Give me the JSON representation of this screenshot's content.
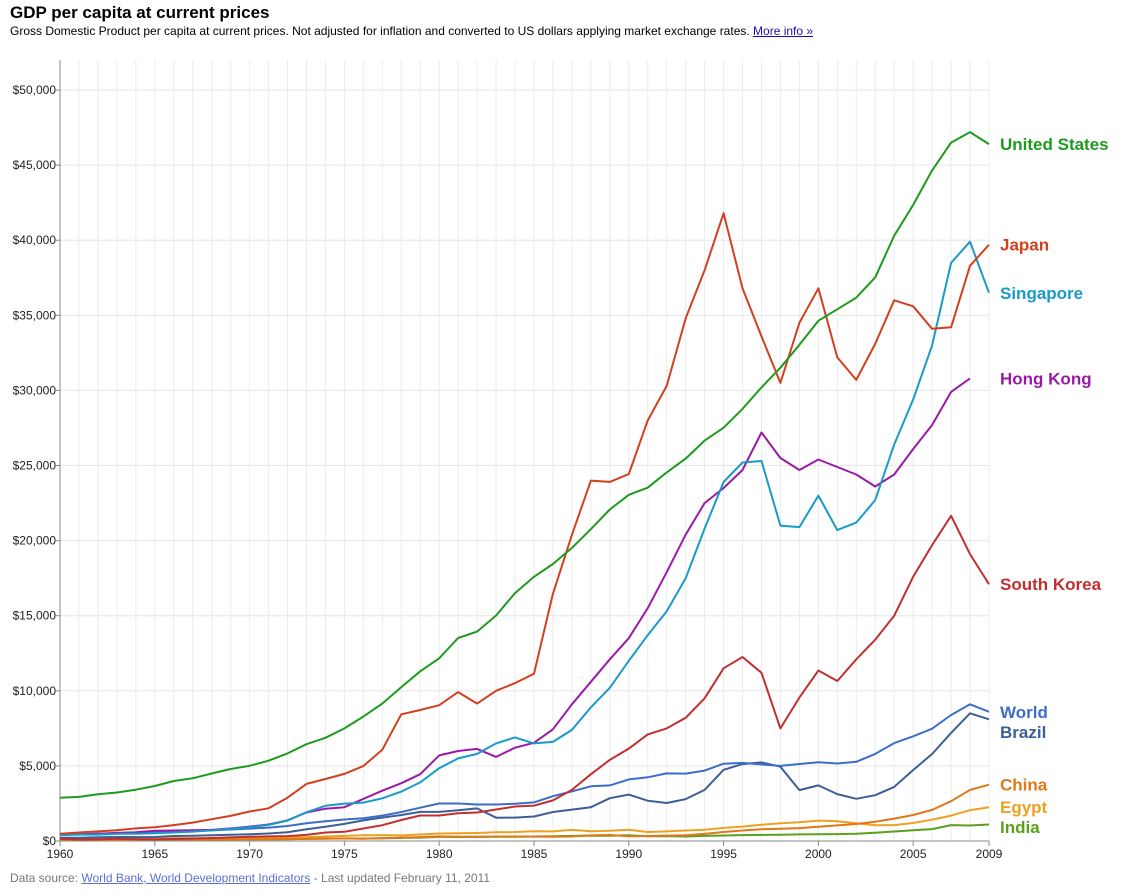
{
  "header": {
    "title": "GDP per capita at current prices",
    "subtitle": "Gross Domestic Product per capita at current prices. Not adjusted for inflation and converted to US dollars applying market exchange rates.",
    "more_info_link": "More info »"
  },
  "footer": {
    "prefix": "Data source: ",
    "source_link": "World Bank, World Development Indicators",
    "suffix": " - Last updated February 11, 2011"
  },
  "chart_data": {
    "type": "line",
    "title": "GDP per capita at current prices",
    "xlabel": "",
    "ylabel": "",
    "xlim": [
      1960,
      2009
    ],
    "ylim": [
      0,
      52000
    ],
    "grid": true,
    "legend": "right-end labels",
    "x_ticks": [
      1960,
      1965,
      1970,
      1975,
      1980,
      1985,
      1990,
      1995,
      2000,
      2005,
      2009
    ],
    "x_tick_labels": [
      "1960",
      "1965",
      "1970",
      "1975",
      "1980",
      "1985",
      "1990",
      "1995",
      "2000",
      "2005",
      "2009"
    ],
    "y_ticks": [
      0,
      5000,
      10000,
      15000,
      20000,
      25000,
      30000,
      35000,
      40000,
      45000,
      50000
    ],
    "y_tick_labels": [
      "$0",
      "$5,000",
      "$10,000",
      "$15,000",
      "$20,000",
      "$25,000",
      "$30,000",
      "$35,000",
      "$40,000",
      "$45,000",
      "$50,000"
    ],
    "series": [
      {
        "name": "United States",
        "color": "#1e9b1e",
        "start": 1960,
        "values": [
          2881,
          2934,
          3107,
          3232,
          3413,
          3665,
          3995,
          4173,
          4495,
          4797,
          5009,
          5347,
          5831,
          6443,
          6870,
          7495,
          8282,
          9148,
          10250,
          11300,
          12162,
          13514,
          13941,
          15013,
          16508,
          17588,
          18441,
          19513,
          20765,
          22075,
          23051,
          23524,
          24544,
          25459,
          26662,
          27521,
          28770,
          30202,
          31510,
          33040,
          34640,
          35400,
          36180,
          37525,
          40300,
          42350,
          44650,
          46500,
          47200,
          46400
        ],
        "label_value": 46400
      },
      {
        "name": "Japan",
        "color": "#d2401e",
        "start": 1960,
        "values": [
          479,
          564,
          638,
          717,
          836,
          919,
          1058,
          1228,
          1451,
          1669,
          1967,
          2178,
          2881,
          3804,
          4130,
          4465,
          4984,
          6076,
          8436,
          8720,
          9040,
          9911,
          9145,
          9999,
          10510,
          11140,
          16450,
          20380,
          23996,
          23911,
          24430,
          28000,
          30300,
          34800,
          38000,
          41800,
          36800,
          33600,
          30500,
          34500,
          36800,
          32200,
          30700,
          33100,
          36000,
          35600,
          34100,
          34200,
          38300,
          39700
        ],
        "label_value": 39700
      },
      {
        "name": "Singapore",
        "color": "#1a9ac8",
        "start": 1960,
        "values": [
          395,
          426,
          429,
          472,
          489,
          516,
          566,
          626,
          708,
          812,
          925,
          1070,
          1358,
          1917,
          2344,
          2490,
          2560,
          2845,
          3290,
          3900,
          4850,
          5500,
          5800,
          6500,
          6900,
          6500,
          6600,
          7400,
          8900,
          10200,
          12000,
          13700,
          15300,
          17500,
          20800,
          23900,
          25200,
          25300,
          21000,
          20900,
          23000,
          20700,
          21200,
          22700,
          26400,
          29400,
          33000,
          38500,
          39900,
          36500
        ],
        "label_value": 36500
      },
      {
        "name": "Hong Kong",
        "color": "#9a1aa8",
        "start": 1960,
        "values": [
          429,
          434,
          478,
          536,
          576,
          678,
          702,
          719,
          741,
          842,
          960,
          1100,
          1380,
          1900,
          2150,
          2250,
          2800,
          3350,
          3850,
          4450,
          5700,
          5990,
          6130,
          5600,
          6210,
          6540,
          7440,
          9100,
          10600,
          12100,
          13500,
          15500,
          17900,
          20400,
          22500,
          23500,
          24700,
          27200,
          25500,
          24700,
          25400,
          24900,
          24400,
          23600,
          24400,
          26100,
          27700,
          29900,
          30800
        ],
        "label_value": 30800
      },
      {
        "name": "South Korea",
        "color": "#c03030",
        "start": 1960,
        "values": [
          155,
          92,
          106,
          146,
          123,
          108,
          133,
          161,
          198,
          240,
          279,
          303,
          323,
          406,
          563,
          612,
          830,
          1050,
          1400,
          1700,
          1700,
          1850,
          1900,
          2100,
          2300,
          2360,
          2700,
          3400,
          4450,
          5400,
          6150,
          7100,
          7500,
          8200,
          9500,
          11500,
          12250,
          11200,
          7500,
          9550,
          11350,
          10650,
          12100,
          13400,
          15000,
          17600,
          19700,
          21650,
          19100,
          17100
        ],
        "label_value": 17100
      },
      {
        "name": "World",
        "color": "#3c6ec8",
        "start": 1960,
        "values": [
          446,
          466,
          493,
          519,
          560,
          596,
          637,
          667,
          704,
          767,
          828,
          891,
          1000,
          1180,
          1320,
          1430,
          1520,
          1690,
          1930,
          2220,
          2500,
          2500,
          2430,
          2430,
          2480,
          2570,
          2980,
          3300,
          3640,
          3700,
          4100,
          4240,
          4500,
          4490,
          4690,
          5150,
          5200,
          5100,
          5000,
          5130,
          5240,
          5160,
          5270,
          5800,
          6520,
          6970,
          7480,
          8390,
          9100,
          8600
        ],
        "label_value": 8600
      },
      {
        "name": "Brazil",
        "color": "#3c5f96",
        "start": 1960,
        "values": [
          210,
          220,
          245,
          265,
          260,
          265,
          330,
          355,
          380,
          410,
          445,
          500,
          580,
          780,
          950,
          1140,
          1370,
          1560,
          1730,
          1940,
          1940,
          2050,
          2170,
          1550,
          1560,
          1630,
          1930,
          2090,
          2250,
          2850,
          3090,
          2680,
          2530,
          2790,
          3400,
          4740,
          5120,
          5230,
          4950,
          3390,
          3700,
          3120,
          2810,
          3050,
          3600,
          4730,
          5790,
          7200,
          8500,
          8100
        ],
        "label_value": 8100
      },
      {
        "name": "China",
        "color": "#e07818",
        "start": 1960,
        "values": [
          92,
          75,
          70,
          73,
          85,
          98,
          104,
          96,
          91,
          100,
          112,
          118,
          131,
          155,
          158,
          173,
          162,
          183,
          224,
          262,
          309,
          288,
          280,
          300,
          300,
          292,
          280,
          300,
          370,
          400,
          314,
          330,
          360,
          380,
          470,
          600,
          700,
          780,
          820,
          860,
          950,
          1040,
          1130,
          1280,
          1490,
          1730,
          2070,
          2650,
          3400,
          3750
        ],
        "label_value": 3750
      },
      {
        "name": "Egypt",
        "color": "#f0a020",
        "start": 1960,
        "values": [
          150,
          152,
          150,
          160,
          175,
          190,
          200,
          190,
          180,
          190,
          210,
          220,
          250,
          260,
          300,
          340,
          380,
          390,
          370,
          430,
          500,
          510,
          530,
          580,
          600,
          650,
          640,
          740,
          650,
          680,
          750,
          600,
          640,
          700,
          750,
          870,
          960,
          1080,
          1180,
          1250,
          1360,
          1320,
          1180,
          1050,
          1060,
          1200,
          1420,
          1690,
          2050,
          2250
        ],
        "label_value": 2250
      },
      {
        "name": "India",
        "color": "#5aa01e",
        "start": 1960,
        "values": [
          84,
          89,
          92,
          102,
          114,
          119,
          91,
          95,
          101,
          110,
          113,
          119,
          122,
          143,
          160,
          166,
          160,
          180,
          205,
          225,
          270,
          272,
          276,
          289,
          281,
          297,
          310,
          340,
          357,
          349,
          378,
          315,
          323,
          300,
          340,
          365,
          390,
          405,
          410,
          440,
          450,
          460,
          480,
          550,
          630,
          710,
          790,
          1060,
          1030,
          1100
        ],
        "label_value": 1100
      }
    ]
  }
}
